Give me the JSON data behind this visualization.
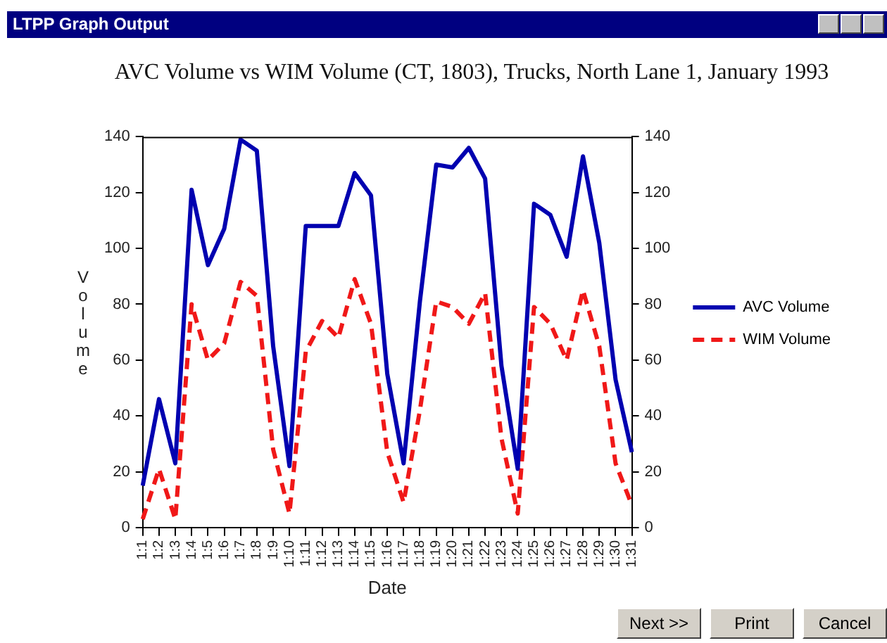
{
  "chart_data": {
    "type": "line",
    "title": "AVC Volume vs WIM Volume (CT, 1803), Trucks, North Lane 1, January 1993",
    "xlabel": "Date",
    "ylabel": "Volume",
    "annotations": [
      "LTPP Graph Output",
      "Next >>",
      "Print",
      "Cancel"
    ],
    "categories": [
      "1:1",
      "1:2",
      "1:3",
      "1:4",
      "1:5",
      "1:6",
      "1:7",
      "1:8",
      "1:9",
      "1:10",
      "1:11",
      "1:12",
      "1:13",
      "1:14",
      "1:15",
      "1:16",
      "1:17",
      "1:18",
      "1:19",
      "1:20",
      "1:21",
      "1:22",
      "1:23",
      "1:24",
      "1:25",
      "1:26",
      "1:27",
      "1:28",
      "1:29",
      "1:30",
      "1:31"
    ],
    "series": [
      {
        "name": "AVC Volume",
        "color": "#0000b0",
        "line_style": "solid",
        "values": [
          15,
          46,
          23,
          121,
          94,
          107,
          139,
          135,
          65,
          22,
          108,
          108,
          108,
          127,
          119,
          55,
          23,
          81,
          130,
          129,
          136,
          125,
          58,
          21,
          116,
          112,
          97,
          133,
          102,
          53,
          27
        ]
      },
      {
        "name": "WIM Volume",
        "color": "#f01818",
        "line_style": "dashed",
        "values": [
          3,
          21,
          3,
          80,
          60,
          66,
          88,
          83,
          28,
          5,
          63,
          74,
          68,
          89,
          73,
          27,
          9,
          42,
          81,
          79,
          73,
          84,
          32,
          5,
          79,
          73,
          60,
          85,
          65,
          23,
          8
        ]
      }
    ],
    "ylim": [
      0,
      140
    ],
    "yticks": [
      0,
      20,
      40,
      60,
      80,
      100,
      120,
      140
    ],
    "y2lim": [
      0,
      140
    ],
    "y2ticks": [
      0,
      20,
      40,
      60,
      80,
      100,
      120,
      140
    ],
    "grid": false,
    "legend": "right",
    "marker": "none"
  }
}
